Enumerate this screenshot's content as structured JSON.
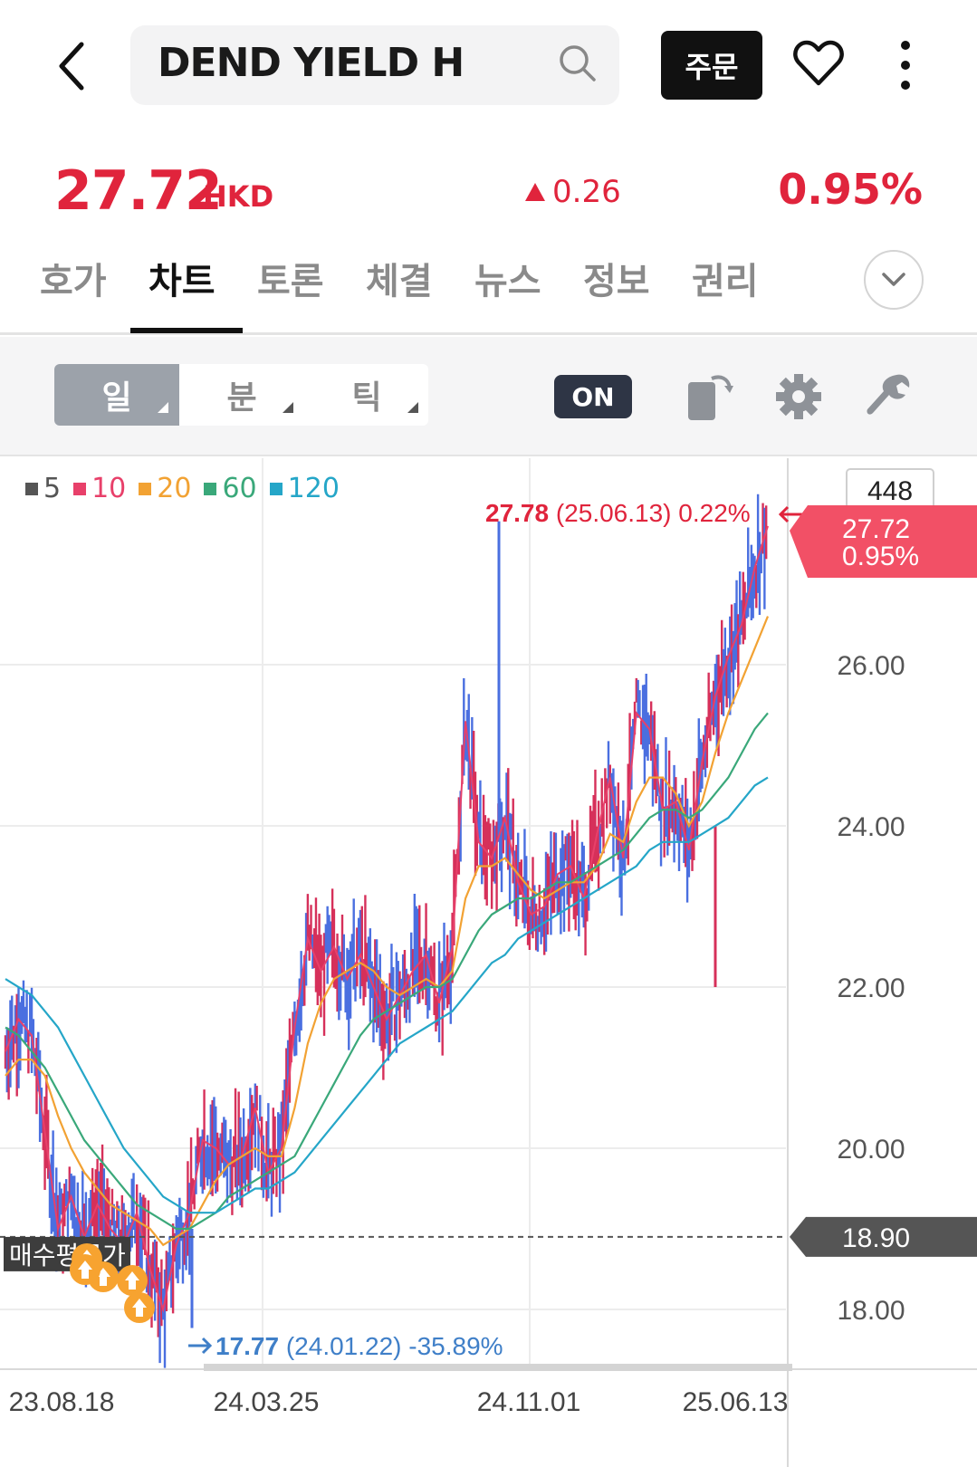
{
  "header": {
    "search_text": "DEND YIELD H",
    "order_label": "주문"
  },
  "price": {
    "value": "27.72",
    "currency": "HKD",
    "change": "0.26",
    "change_pct": "0.95%"
  },
  "tabs": [
    {
      "label": "호가"
    },
    {
      "label": "차트",
      "active": true
    },
    {
      "label": "토론"
    },
    {
      "label": "체결"
    },
    {
      "label": "뉴스"
    },
    {
      "label": "정보"
    },
    {
      "label": "권리"
    }
  ],
  "toolbar": {
    "periods": [
      {
        "label": "일",
        "active": true
      },
      {
        "label": "분"
      },
      {
        "label": "틱"
      }
    ],
    "on_label": "ON"
  },
  "colors": {
    "up": "#e0243c",
    "ma5": "#555555",
    "ma10": "#e8406a",
    "ma20": "#f2a233",
    "ma60": "#3aa87a",
    "ma120": "#25a6c8",
    "candle_blue": "#4a6fe0",
    "candle_red": "#d6305a"
  },
  "chart_data": {
    "type": "line",
    "legend": [
      {
        "name": "5",
        "color": "#555555"
      },
      {
        "name": "10",
        "color": "#e8406a"
      },
      {
        "name": "20",
        "color": "#f2a233"
      },
      {
        "name": "60",
        "color": "#3aa87a"
      },
      {
        "name": "120",
        "color": "#25a6c8"
      }
    ],
    "x_ticks": [
      "23.08.18",
      "24.03.25",
      "24.11.01",
      "25.06.13"
    ],
    "y_ticks": [
      "26.00",
      "24.00",
      "22.00",
      "20.00",
      "18.00"
    ],
    "ylim": [
      17.5,
      28.2
    ],
    "volume_box": "448",
    "current_label": {
      "price": "27.72",
      "pct": "0.95%"
    },
    "avg_label": {
      "price": "18.90",
      "text": "매수평균가"
    },
    "high_annotation": {
      "price": "27.78",
      "date": "(25.06.13)",
      "pct": "0.22%"
    },
    "low_annotation": {
      "price": "17.77",
      "date": "(24.01.22)",
      "pct": "-35.89%"
    },
    "close_path": [
      21.2,
      21.6,
      21.4,
      20.2,
      19.0,
      19.4,
      18.9,
      19.3,
      19.0,
      18.8,
      19.2,
      18.5,
      18.0,
      18.8,
      19.2,
      20.1,
      20.0,
      19.8,
      19.9,
      20.5,
      19.7,
      20.0,
      21.5,
      22.6,
      22.2,
      22.5,
      22.1,
      22.4,
      22.0,
      21.6,
      21.9,
      22.2,
      22.4,
      21.8,
      22.5,
      25.3,
      23.8,
      23.6,
      24.1,
      23.3,
      22.9,
      23.0,
      23.4,
      23.5,
      23.1,
      23.9,
      24.6,
      23.6,
      25.4,
      25.2,
      24.2,
      24.3,
      23.7,
      24.8,
      25.6,
      26.1,
      26.5,
      27.2,
      27.72
    ],
    "ma20": [
      20.9,
      21.1,
      21.1,
      20.9,
      20.4,
      20.0,
      19.7,
      19.5,
      19.3,
      19.2,
      19.1,
      19.0,
      18.8,
      18.9,
      19.0,
      19.3,
      19.6,
      19.8,
      19.9,
      20.0,
      19.9,
      19.9,
      20.5,
      21.3,
      21.8,
      22.1,
      22.2,
      22.3,
      22.2,
      22.0,
      21.9,
      22.0,
      22.1,
      22.0,
      22.2,
      23.1,
      23.5,
      23.5,
      23.6,
      23.4,
      23.2,
      23.1,
      23.2,
      23.3,
      23.3,
      23.5,
      23.9,
      23.8,
      24.3,
      24.6,
      24.6,
      24.4,
      24.0,
      24.3,
      24.9,
      25.4,
      25.8,
      26.2,
      26.6
    ],
    "ma60": [
      21.5,
      21.4,
      21.2,
      21.0,
      20.7,
      20.4,
      20.1,
      19.9,
      19.7,
      19.5,
      19.3,
      19.2,
      19.1,
      19.0,
      19.0,
      19.1,
      19.2,
      19.4,
      19.5,
      19.6,
      19.7,
      19.8,
      19.9,
      20.2,
      20.5,
      20.8,
      21.1,
      21.4,
      21.6,
      21.7,
      21.8,
      21.9,
      22.0,
      22.0,
      22.1,
      22.4,
      22.7,
      22.9,
      23.0,
      23.1,
      23.1,
      23.2,
      23.3,
      23.3,
      23.4,
      23.5,
      23.6,
      23.7,
      23.9,
      24.1,
      24.2,
      24.2,
      24.1,
      24.2,
      24.4,
      24.6,
      24.9,
      25.2,
      25.4
    ],
    "ma120": [
      22.1,
      22.0,
      21.9,
      21.7,
      21.5,
      21.2,
      20.9,
      20.6,
      20.3,
      20.0,
      19.8,
      19.6,
      19.4,
      19.3,
      19.2,
      19.2,
      19.2,
      19.3,
      19.4,
      19.5,
      19.5,
      19.6,
      19.7,
      19.9,
      20.1,
      20.3,
      20.5,
      20.7,
      20.9,
      21.1,
      21.3,
      21.4,
      21.5,
      21.6,
      21.7,
      21.9,
      22.1,
      22.3,
      22.4,
      22.6,
      22.7,
      22.8,
      22.9,
      23.0,
      23.1,
      23.2,
      23.3,
      23.4,
      23.5,
      23.7,
      23.8,
      23.8,
      23.8,
      23.9,
      24.0,
      24.1,
      24.3,
      24.5,
      24.6
    ]
  }
}
